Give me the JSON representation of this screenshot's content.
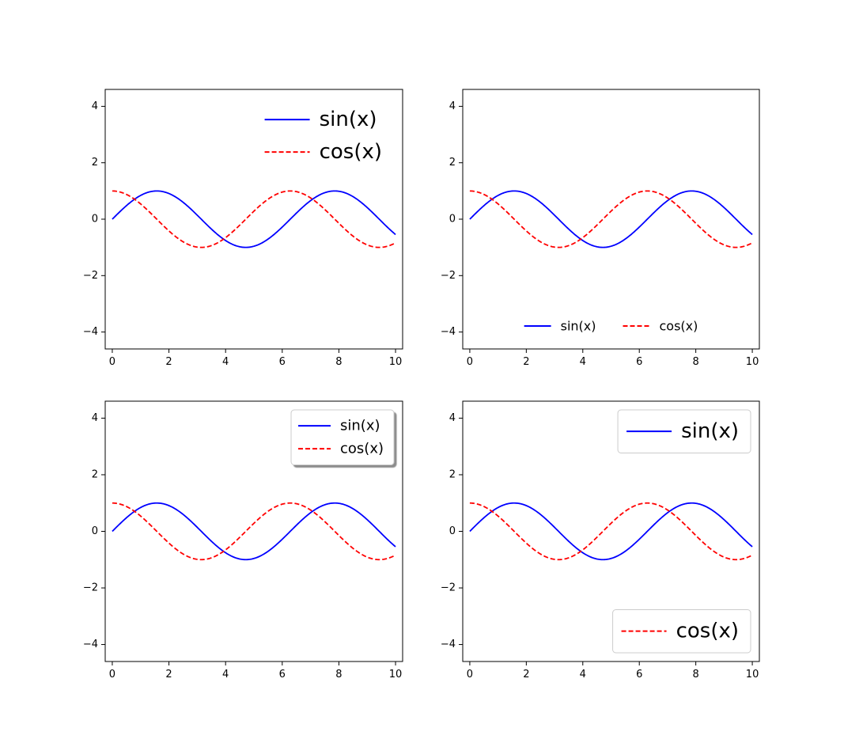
{
  "chart_data": [
    {
      "type": "line",
      "x_range": [
        0,
        10
      ],
      "xlim": [
        -0.25,
        10.25
      ],
      "ylim": [
        -4.6,
        4.6
      ],
      "xticks": [
        0,
        2,
        4,
        6,
        8,
        10
      ],
      "yticks": [
        -4,
        -2,
        0,
        2,
        4
      ],
      "xtick_labels": [
        "0",
        "2",
        "4",
        "6",
        "8",
        "10"
      ],
      "ytick_labels": [
        "−4",
        "−2",
        "0",
        "2",
        "4"
      ],
      "series": [
        {
          "name": "sin(x)",
          "function": "sin",
          "color": "#0000ff",
          "style": "solid"
        },
        {
          "name": "cos(x)",
          "function": "cos",
          "color": "#ff0000",
          "style": "dashed"
        }
      ],
      "legend": {
        "placement": "upper-right",
        "frame": false,
        "shadow": false,
        "columns": 1,
        "size": "large",
        "entries": [
          "sin(x)",
          "cos(x)"
        ]
      }
    },
    {
      "type": "line",
      "x_range": [
        0,
        10
      ],
      "xlim": [
        -0.25,
        10.25
      ],
      "ylim": [
        -4.6,
        4.6
      ],
      "xticks": [
        0,
        2,
        4,
        6,
        8,
        10
      ],
      "yticks": [
        -4,
        -2,
        0,
        2,
        4
      ],
      "xtick_labels": [
        "0",
        "2",
        "4",
        "6",
        "8",
        "10"
      ],
      "ytick_labels": [
        "−4",
        "−2",
        "0",
        "2",
        "4"
      ],
      "series": [
        {
          "name": "sin(x)",
          "function": "sin",
          "color": "#0000ff",
          "style": "solid"
        },
        {
          "name": "cos(x)",
          "function": "cos",
          "color": "#ff0000",
          "style": "dashed"
        }
      ],
      "legend": {
        "placement": "lower-center",
        "frame": false,
        "shadow": false,
        "columns": 2,
        "size": "small",
        "entries": [
          "sin(x)",
          "cos(x)"
        ]
      }
    },
    {
      "type": "line",
      "x_range": [
        0,
        10
      ],
      "xlim": [
        -0.25,
        10.25
      ],
      "ylim": [
        -4.6,
        4.6
      ],
      "xticks": [
        0,
        2,
        4,
        6,
        8,
        10
      ],
      "yticks": [
        -4,
        -2,
        0,
        2,
        4
      ],
      "xtick_labels": [
        "0",
        "2",
        "4",
        "6",
        "8",
        "10"
      ],
      "ytick_labels": [
        "−4",
        "−2",
        "0",
        "2",
        "4"
      ],
      "series": [
        {
          "name": "sin(x)",
          "function": "sin",
          "color": "#0000ff",
          "style": "solid"
        },
        {
          "name": "cos(x)",
          "function": "cos",
          "color": "#ff0000",
          "style": "dashed"
        }
      ],
      "legend": {
        "placement": "upper-right",
        "frame": true,
        "shadow": true,
        "columns": 1,
        "size": "medium",
        "entries": [
          "sin(x)",
          "cos(x)"
        ]
      }
    },
    {
      "type": "line",
      "x_range": [
        0,
        10
      ],
      "xlim": [
        -0.25,
        10.25
      ],
      "ylim": [
        -4.6,
        4.6
      ],
      "xticks": [
        0,
        2,
        4,
        6,
        8,
        10
      ],
      "yticks": [
        -4,
        -2,
        0,
        2,
        4
      ],
      "xtick_labels": [
        "0",
        "2",
        "4",
        "6",
        "8",
        "10"
      ],
      "ytick_labels": [
        "−4",
        "−2",
        "0",
        "2",
        "4"
      ],
      "series": [
        {
          "name": "sin(x)",
          "function": "sin",
          "color": "#0000ff",
          "style": "solid"
        },
        {
          "name": "cos(x)",
          "function": "cos",
          "color": "#ff0000",
          "style": "dashed"
        }
      ],
      "legends": [
        {
          "placement": "upper-right",
          "frame": true,
          "shadow": false,
          "columns": 1,
          "size": "large",
          "entries": [
            "sin(x)"
          ]
        },
        {
          "placement": "lower-right",
          "frame": true,
          "shadow": false,
          "columns": 1,
          "size": "large",
          "entries": [
            "cos(x)"
          ]
        }
      ]
    }
  ]
}
